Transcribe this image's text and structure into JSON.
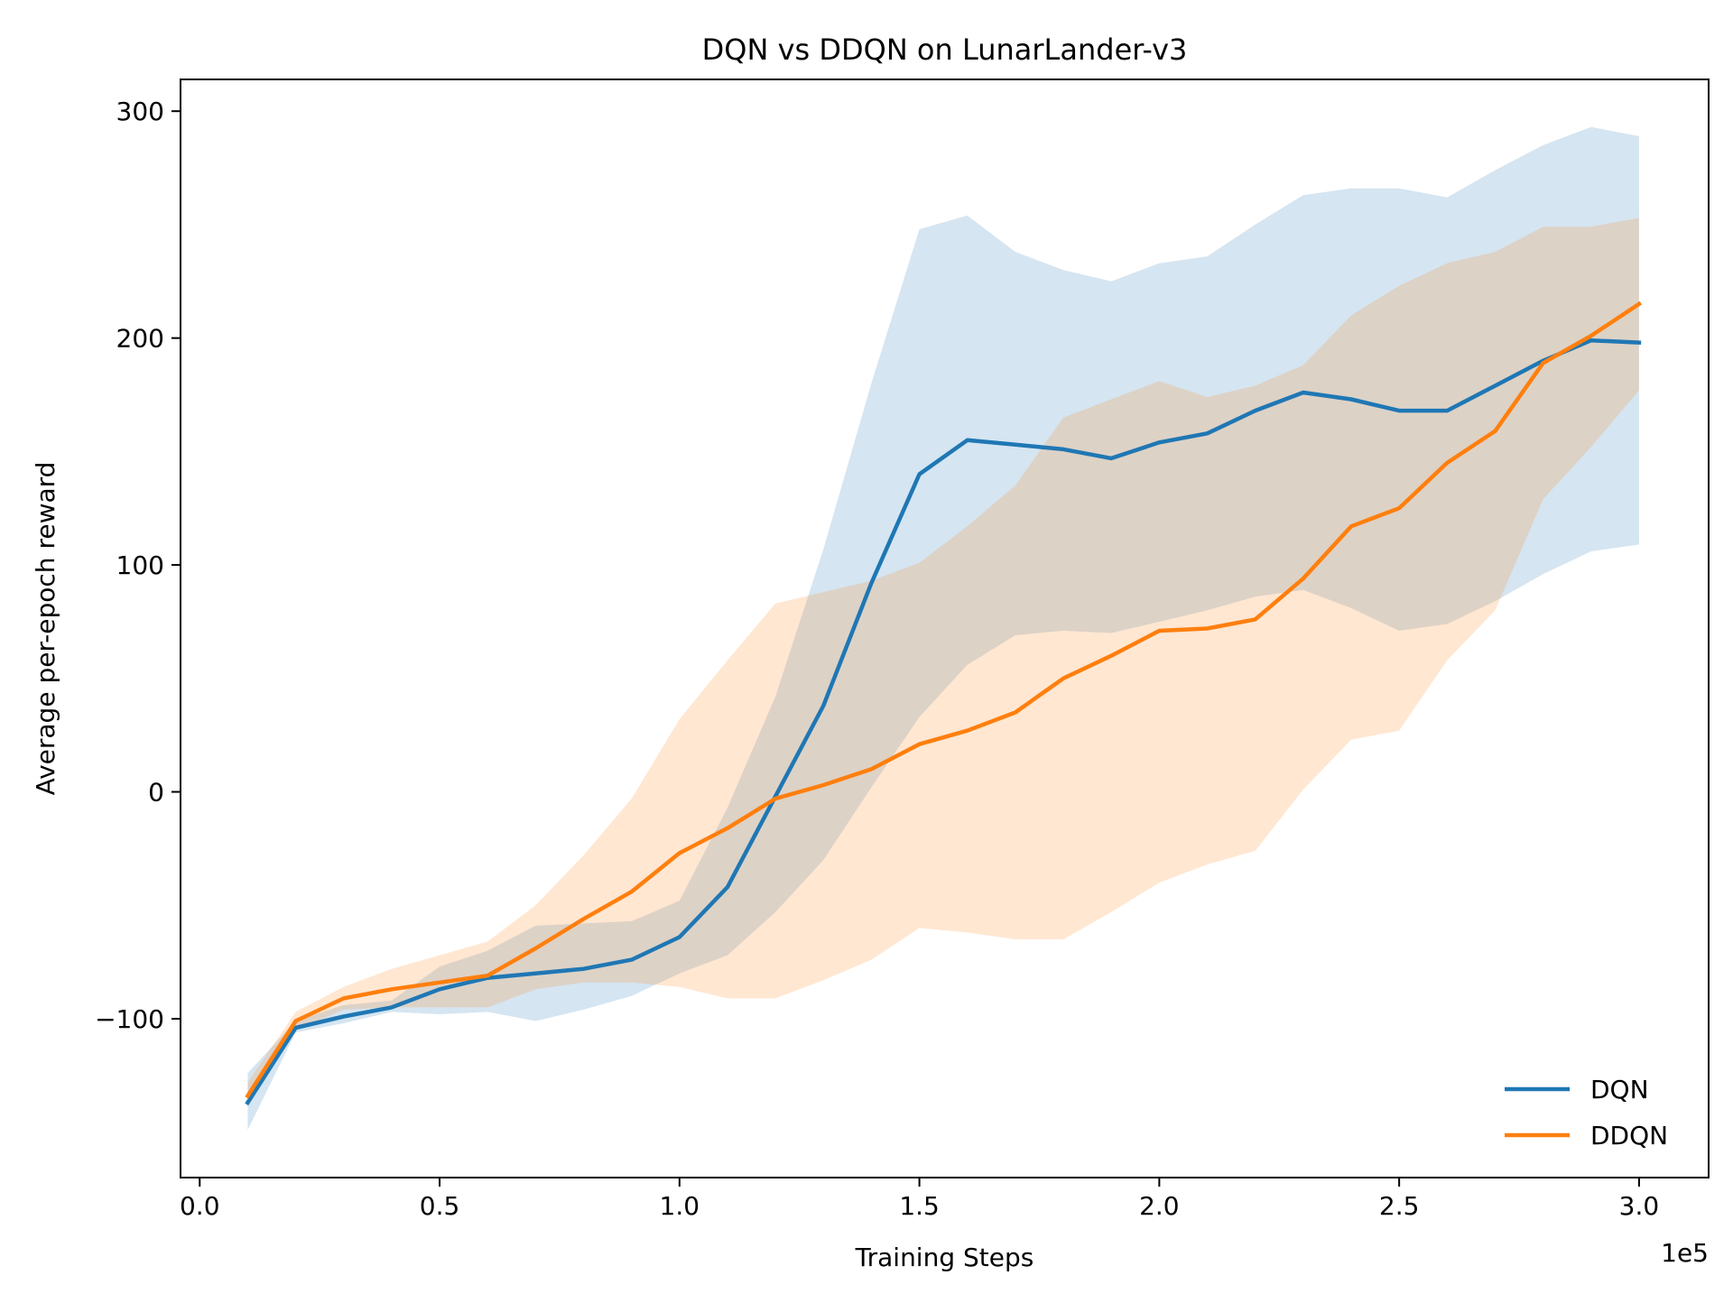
{
  "chart_data": {
    "type": "line",
    "title": "DQN vs DDQN on LunarLander-v3",
    "xlabel": "Training Steps",
    "ylabel": "Average per-epoch reward",
    "x_offset_label": "1e5",
    "xlim": [
      -0.04,
      3.145
    ],
    "ylim": [
      -170,
      314
    ],
    "x_ticks": [
      {
        "value": 0.0,
        "label": "0.0"
      },
      {
        "value": 0.5,
        "label": "0.5"
      },
      {
        "value": 1.0,
        "label": "1.0"
      },
      {
        "value": 1.5,
        "label": "1.5"
      },
      {
        "value": 2.0,
        "label": "2.0"
      },
      {
        "value": 2.5,
        "label": "2.5"
      },
      {
        "value": 3.0,
        "label": "3.0"
      }
    ],
    "y_ticks": [
      {
        "value": -100,
        "label": "−100"
      },
      {
        "value": 0,
        "label": "0"
      },
      {
        "value": 100,
        "label": "100"
      },
      {
        "value": 200,
        "label": "200"
      },
      {
        "value": 300,
        "label": "300"
      }
    ],
    "grid": false,
    "legend_position": "lower-right",
    "x": [
      0.1,
      0.2,
      0.3,
      0.4,
      0.5,
      0.6,
      0.7,
      0.8,
      0.9,
      1.0,
      1.1,
      1.2,
      1.3,
      1.4,
      1.5,
      1.6,
      1.7,
      1.8,
      1.9,
      2.0,
      2.1,
      2.2,
      2.3,
      2.4,
      2.5,
      2.6,
      2.7,
      2.8,
      2.9,
      3.0
    ],
    "series": [
      {
        "name": "DQN",
        "color": "#1f77b4",
        "band_color": "#1f77b4",
        "values": [
          -137,
          -104,
          -99,
          -95,
          -87,
          -82,
          -80,
          -78,
          -74,
          -64,
          -42,
          -2,
          38,
          92,
          140,
          155,
          153,
          151,
          147,
          154,
          158,
          168,
          176,
          173,
          168,
          168,
          179,
          190,
          199,
          198
        ],
        "upper": [
          -124,
          -101,
          -94,
          -92,
          -77,
          -70,
          -59,
          -58,
          -57,
          -48,
          -7,
          42,
          107,
          180,
          248,
          254,
          238,
          230,
          225,
          233,
          236,
          250,
          263,
          266,
          266,
          262,
          274,
          285,
          293,
          289
        ],
        "lower": [
          -149,
          -106,
          -102,
          -97,
          -98,
          -97,
          -101,
          -96,
          -90,
          -80,
          -72,
          -53,
          -30,
          2,
          33,
          56,
          69,
          71,
          70,
          75,
          80,
          86,
          89,
          81,
          71,
          74,
          84,
          96,
          106,
          109
        ]
      },
      {
        "name": "DDQN",
        "color": "#ff7f0e",
        "band_color": "#ff7f0e",
        "values": [
          -134,
          -101,
          -91,
          -87,
          -84,
          -81,
          -69,
          -56,
          -44,
          -27,
          -16,
          -3,
          3,
          10,
          21,
          27,
          35,
          50,
          60,
          71,
          72,
          76,
          94,
          117,
          125,
          145,
          159,
          189,
          201,
          215
        ],
        "upper": [
          -128,
          -97,
          -86,
          -78,
          -72,
          -66,
          -50,
          -28,
          -3,
          32,
          58,
          83,
          88,
          93,
          101,
          117,
          135,
          165,
          173,
          181,
          174,
          179,
          188,
          210,
          223,
          233,
          238,
          249,
          249,
          253
        ],
        "lower": [
          -138,
          -105,
          -96,
          -95,
          -95,
          -95,
          -87,
          -84,
          -84,
          -86,
          -91,
          -91,
          -83,
          -74,
          -60,
          -62,
          -65,
          -65,
          -53,
          -40,
          -32,
          -26,
          1,
          23,
          27,
          58,
          80,
          129,
          152,
          177
        ]
      }
    ]
  }
}
